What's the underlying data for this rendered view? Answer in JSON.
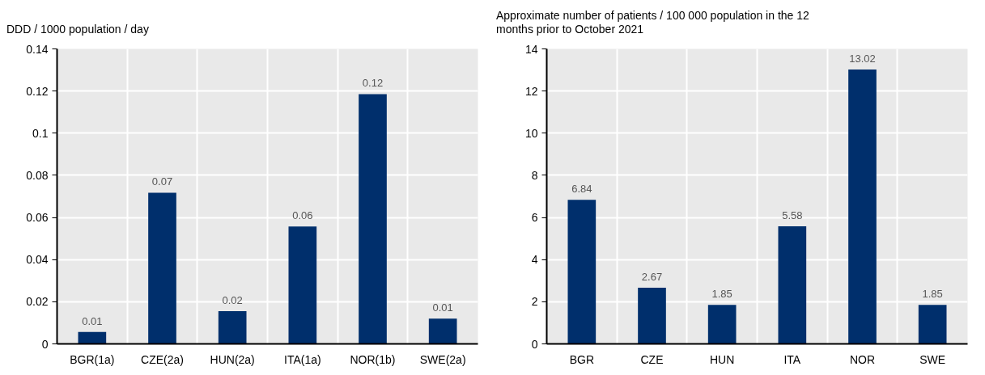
{
  "chart_data": [
    {
      "type": "bar",
      "ylabel": "DDD / 1000 population / day",
      "categories": [
        "BGR(1a)",
        "CZE(2a)",
        "HUN(2a)",
        "ITA(1a)",
        "NOR(1b)",
        "SWE(2a)"
      ],
      "values": [
        0.0057,
        0.0717,
        0.0155,
        0.0557,
        0.1185,
        0.012
      ],
      "color": "#002f6c",
      "value_labels": [
        "0.01",
        "0.07",
        "0.02",
        "0.06",
        "0.12",
        "0.01"
      ],
      "ylim": [
        0,
        0.14
      ],
      "yticks": [
        0,
        0.02,
        0.04,
        0.06,
        0.08,
        0.1,
        0.12,
        0.14
      ],
      "grid": true
    },
    {
      "type": "bar",
      "ylabel": "Approximate number of patients / 100 000 population in the 12 months prior to October 2021",
      "categories": [
        "BGR",
        "CZE",
        "HUN",
        "ITA",
        "NOR",
        "SWE"
      ],
      "values": [
        6.84,
        2.67,
        1.85,
        5.58,
        13.02,
        1.85
      ],
      "color": "#002f6c",
      "data_labels": true,
      "ylim": [
        0,
        14
      ],
      "yticks": [
        0,
        2,
        4,
        6,
        8,
        10,
        12,
        14
      ],
      "grid": true
    }
  ]
}
